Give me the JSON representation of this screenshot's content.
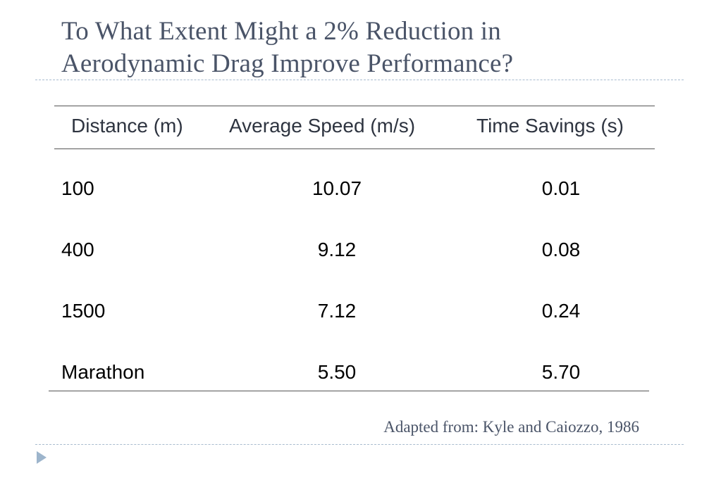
{
  "slide": {
    "title_line1": "To What Extent Might a 2% Reduction in",
    "title_line2": "Aerodynamic Drag Improve Performance?"
  },
  "table": {
    "headers": [
      "Distance (m)",
      "Average Speed (m/s)",
      "Time Savings (s)"
    ],
    "rows": [
      [
        "100",
        "10.07",
        "0.01"
      ],
      [
        "400",
        "9.12",
        "0.08"
      ],
      [
        "1500",
        "7.12",
        "0.24"
      ],
      [
        "Marathon",
        "5.50",
        "5.70"
      ]
    ]
  },
  "caption": "Adapted from: Kyle and Caiozzo, 1986",
  "colors": {
    "title": "#4a5468",
    "divider": "#a9bccf",
    "bullet": "#9db5cc"
  },
  "icons": {
    "bullet": "triangle-bullet-icon"
  }
}
